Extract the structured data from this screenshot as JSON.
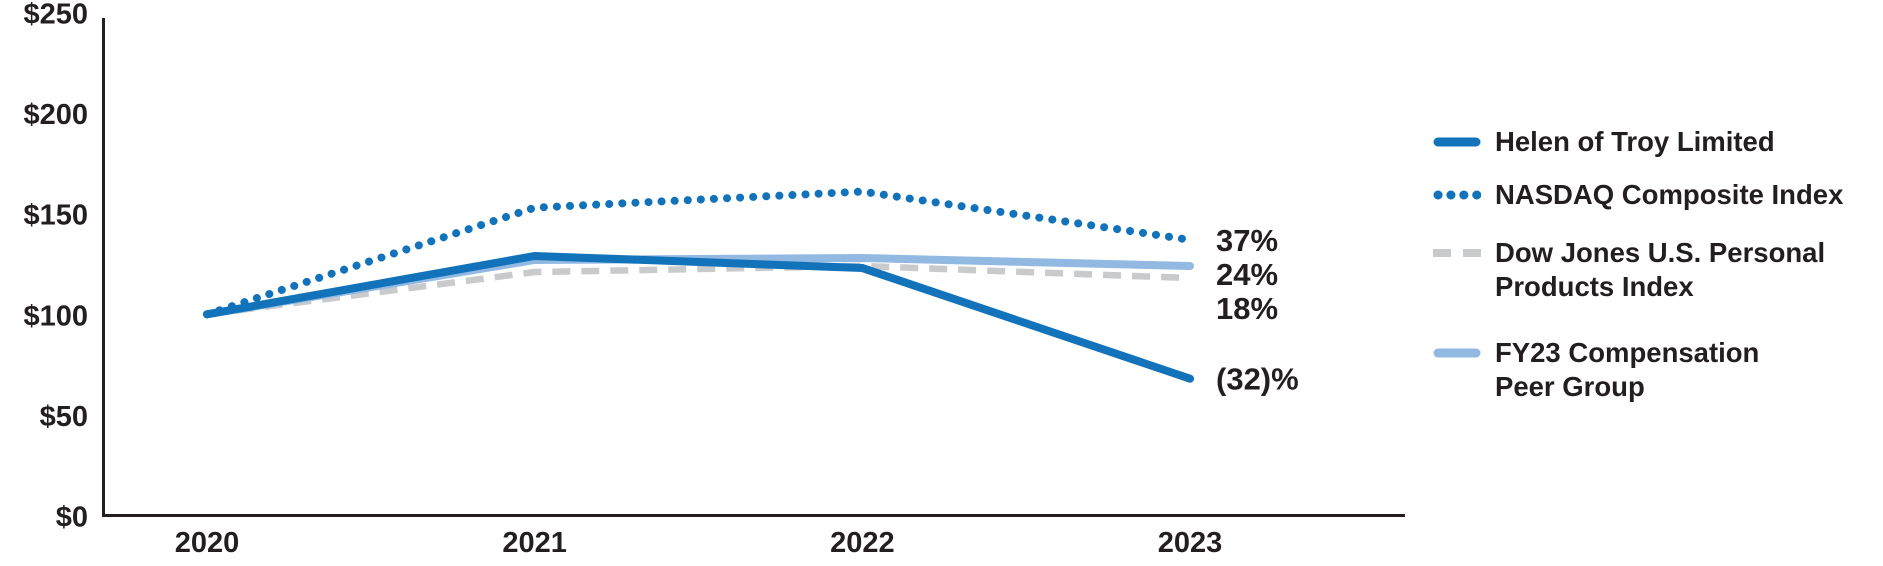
{
  "chart_data": {
    "type": "line",
    "title": "",
    "categories": [
      "2020",
      "2021",
      "2022",
      "2023"
    ],
    "series": [
      {
        "name": "Helen of Troy Limited",
        "values": [
          100,
          129,
          123,
          68
        ],
        "color": "#1273BA",
        "line_style": "solid",
        "end_label": "(32)%"
      },
      {
        "name": "NASDAQ Composite Index",
        "values": [
          100,
          153,
          161,
          137
        ],
        "color": "#1273BA",
        "line_style": "dotted",
        "end_label": "37%"
      },
      {
        "name": "Dow Jones U.S. Personal Products Index",
        "values": [
          100,
          121,
          124,
          118
        ],
        "color": "#C9CACB",
        "line_style": "dashed",
        "end_label": "18%"
      },
      {
        "name": "FY23 Compensation Peer Group",
        "values": [
          100,
          127,
          128,
          124
        ],
        "color": "#92B9E2",
        "line_style": "solid",
        "end_label": "24%"
      }
    ],
    "y_axis": {
      "range": [
        0,
        250
      ],
      "ticks": [
        {
          "label": "$0",
          "value": 0
        },
        {
          "label": "$50",
          "value": 50
        },
        {
          "label": "$100",
          "value": 100
        },
        {
          "label": "$150",
          "value": 150
        },
        {
          "label": "$200",
          "value": 200
        },
        {
          "label": "$250",
          "value": 250
        }
      ]
    },
    "x_axis": {
      "labels": [
        "2020",
        "2021",
        "2022",
        "2023"
      ]
    },
    "grid": false,
    "legend": {
      "position": "right",
      "items": [
        "Helen of Troy Limited",
        "NASDAQ Composite Index",
        "Dow Jones U.S. Personal\nProducts Index",
        "FY23 Compensation\nPeer Group"
      ]
    }
  },
  "colors": {
    "axis": "#231F20",
    "text": "#231F20",
    "accent_blue": "#1273BA",
    "light_blue": "#92B9E2",
    "gray": "#C9CACB"
  }
}
